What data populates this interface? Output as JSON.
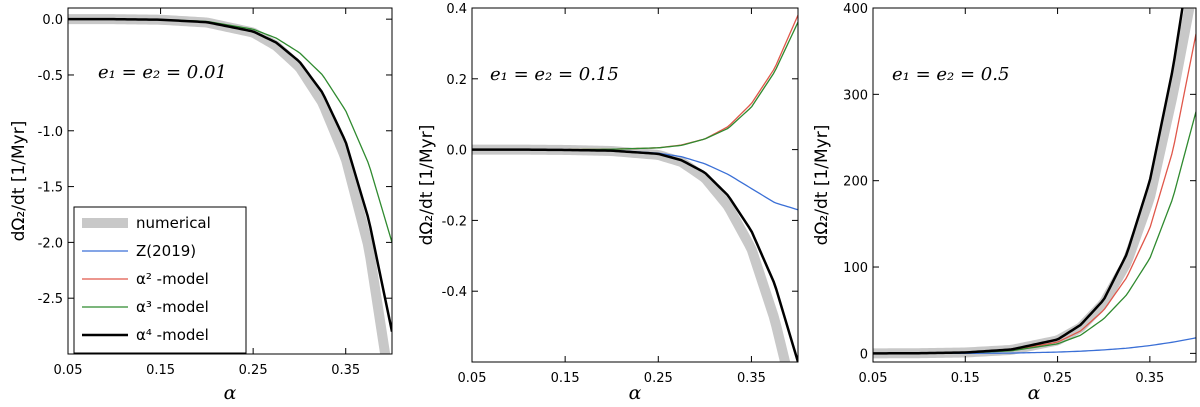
{
  "colors": {
    "numerical": "#c8c8c8",
    "z2019": "#3a6fd6",
    "alpha2": "#e0574a",
    "alpha3": "#2f8a2f",
    "alpha4": "#000000"
  },
  "legend": {
    "placement": "lower-left (panel 1)",
    "entries": [
      {
        "key": "numerical",
        "label": "numerical"
      },
      {
        "key": "z2019",
        "label": "Z(2019)"
      },
      {
        "key": "alpha2",
        "label": "α² -model"
      },
      {
        "key": "alpha3",
        "label": "α³ -model"
      },
      {
        "key": "alpha4",
        "label": "α⁴ -model"
      }
    ]
  },
  "chart_data": [
    {
      "type": "line",
      "annotation": "e₁ = e₂ = 0.01",
      "xlabel": "α",
      "ylabel": "dΩ₂/dt [1/Myr]",
      "xlim": [
        0.05,
        0.4
      ],
      "ylim": [
        -3.0,
        0.1
      ],
      "xticks": [
        "0.05",
        "0.15",
        "0.25",
        "0.35"
      ],
      "yticks": [
        "0.0",
        "-0.5",
        "-1.0",
        "-1.5",
        "-2.0",
        "-2.5"
      ],
      "x": [
        0.05,
        0.1,
        0.15,
        0.2,
        0.25,
        0.275,
        0.3,
        0.325,
        0.35,
        0.375,
        0.4
      ],
      "series": [
        {
          "name": "numerical",
          "key": "numerical",
          "values": [
            0.0,
            0.0,
            -0.005,
            -0.03,
            -0.12,
            -0.24,
            -0.43,
            -0.75,
            -1.25,
            -2.05,
            -3.4
          ]
        },
        {
          "name": "α³ -model",
          "key": "alpha3",
          "values": [
            0.0,
            0.0,
            -0.004,
            -0.02,
            -0.09,
            -0.17,
            -0.3,
            -0.5,
            -0.82,
            -1.3,
            -2.0
          ]
        },
        {
          "name": "α⁴ -model",
          "key": "alpha4",
          "values": [
            0.0,
            0.0,
            -0.005,
            -0.027,
            -0.11,
            -0.21,
            -0.38,
            -0.66,
            -1.1,
            -1.8,
            -2.8
          ]
        }
      ]
    },
    {
      "type": "line",
      "annotation": "e₁ = e₂ = 0.15",
      "xlabel": "α",
      "ylabel": "dΩ₂/dt [1/Myr]",
      "xlim": [
        0.05,
        0.4
      ],
      "ylim": [
        -0.6,
        0.4
      ],
      "xticks": [
        "0.05",
        "0.15",
        "0.25",
        "0.35"
      ],
      "yticks": [
        "0.4",
        "0.2",
        "0.0",
        "-0.2",
        "-0.4"
      ],
      "x": [
        0.05,
        0.1,
        0.15,
        0.2,
        0.25,
        0.275,
        0.3,
        0.325,
        0.35,
        0.375,
        0.4
      ],
      "series": [
        {
          "name": "numerical",
          "key": "numerical",
          "values": [
            0.0,
            0.0,
            -0.001,
            -0.004,
            -0.015,
            -0.035,
            -0.08,
            -0.16,
            -0.28,
            -0.48,
            -0.75
          ]
        },
        {
          "name": "Z(2019)",
          "key": "z2019",
          "values": [
            0.0,
            0.0,
            0.0,
            -0.002,
            -0.01,
            -0.02,
            -0.04,
            -0.07,
            -0.11,
            -0.15,
            -0.17
          ]
        },
        {
          "name": "α² -model",
          "key": "alpha2",
          "values": [
            0.0,
            0.0,
            0.0,
            0.001,
            0.005,
            0.013,
            0.03,
            0.065,
            0.13,
            0.23,
            0.38
          ]
        },
        {
          "name": "α³ -model",
          "key": "alpha3",
          "values": [
            0.0,
            0.0,
            0.0,
            0.001,
            0.005,
            0.012,
            0.03,
            0.06,
            0.12,
            0.22,
            0.36
          ]
        },
        {
          "name": "α⁴ -model",
          "key": "alpha4",
          "values": [
            0.0,
            0.0,
            -0.001,
            -0.003,
            -0.012,
            -0.03,
            -0.065,
            -0.13,
            -0.23,
            -0.38,
            -0.6
          ]
        }
      ]
    },
    {
      "type": "line",
      "annotation": "e₁ = e₂ = 0.5",
      "xlabel": "α",
      "ylabel": "dΩ₂/dt [1/Myr]",
      "xlim": [
        0.05,
        0.4
      ],
      "ylim": [
        -10,
        400
      ],
      "xticks": [
        "0.05",
        "0.15",
        "0.25",
        "0.35"
      ],
      "yticks": [
        "400",
        "300",
        "200",
        "100",
        "0"
      ],
      "x": [
        0.05,
        0.1,
        0.15,
        0.2,
        0.25,
        0.275,
        0.3,
        0.325,
        0.35,
        0.375,
        0.4
      ],
      "series": [
        {
          "name": "numerical",
          "key": "numerical",
          "values": [
            0,
            0.2,
            1,
            4,
            15,
            30,
            58,
            105,
            180,
            300,
            440
          ]
        },
        {
          "name": "Z(2019)",
          "key": "z2019",
          "values": [
            0,
            0,
            0,
            0.3,
            1.5,
            2.5,
            4,
            6,
            9,
            13,
            18
          ]
        },
        {
          "name": "α² -model",
          "key": "alpha2",
          "values": [
            0,
            0.1,
            0.8,
            3.5,
            13,
            26,
            50,
            88,
            145,
            235,
            370
          ]
        },
        {
          "name": "α³ -model",
          "key": "alpha3",
          "values": [
            0,
            0.1,
            0.6,
            3,
            11,
            21,
            40,
            68,
            110,
            180,
            280
          ]
        },
        {
          "name": "α⁴ -model",
          "key": "alpha4",
          "values": [
            0,
            0.2,
            1,
            4.5,
            16,
            33,
            62,
            115,
            200,
            330,
            500
          ]
        }
      ]
    }
  ]
}
